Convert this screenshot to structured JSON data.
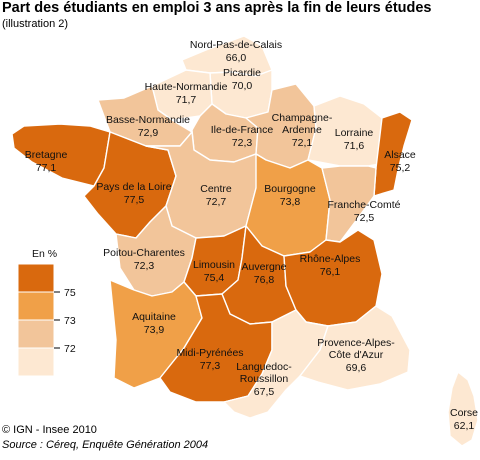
{
  "title": "Part des étudiants en emploi 3 ans après la fin de leurs études",
  "subtitle": "(illustration 2)",
  "legend": {
    "title": "En %",
    "breaks": [
      "75",
      "73",
      "72"
    ],
    "colors": [
      "#d9690e",
      "#f0a048",
      "#f2c59a",
      "#fde8d2"
    ]
  },
  "regions": [
    {
      "id": "nord-pas-de-calais",
      "name": "Nord-Pas-de-Calais",
      "value": "66,0",
      "cls": 3
    },
    {
      "id": "picardie",
      "name": "Picardie",
      "value": "70,0",
      "cls": 3
    },
    {
      "id": "haute-normandie",
      "name": "Haute-Normandie",
      "value": "71,7",
      "cls": 3
    },
    {
      "id": "basse-normandie",
      "name": "Basse-Normandie",
      "value": "72,9",
      "cls": 2
    },
    {
      "id": "ile-de-france",
      "name": "Ile-de-France",
      "value": "72,3",
      "cls": 2
    },
    {
      "id": "champagne-ardenne",
      "name": "Champagne-\nArdenne",
      "value": "72,1",
      "cls": 2
    },
    {
      "id": "lorraine",
      "name": "Lorraine",
      "value": "71,6",
      "cls": 3
    },
    {
      "id": "alsace",
      "name": "Alsace",
      "value": "75,2",
      "cls": 0
    },
    {
      "id": "bretagne",
      "name": "Bretagne",
      "value": "77,1",
      "cls": 0
    },
    {
      "id": "pays-de-la-loire",
      "name": "Pays de la Loire",
      "value": "77,5",
      "cls": 0
    },
    {
      "id": "centre",
      "name": "Centre",
      "value": "72,7",
      "cls": 2
    },
    {
      "id": "bourgogne",
      "name": "Bourgogne",
      "value": "73,8",
      "cls": 1
    },
    {
      "id": "franche-comte",
      "name": "Franche-Comté",
      "value": "72,5",
      "cls": 2
    },
    {
      "id": "poitou-charentes",
      "name": "Poitou-Charentes",
      "value": "72,3",
      "cls": 2
    },
    {
      "id": "limousin",
      "name": "Limousin",
      "value": "75,4",
      "cls": 0
    },
    {
      "id": "auvergne",
      "name": "Auvergne",
      "value": "76,8",
      "cls": 0
    },
    {
      "id": "rhone-alpes",
      "name": "Rhône-Alpes",
      "value": "76,1",
      "cls": 0
    },
    {
      "id": "aquitaine",
      "name": "Aquitaine",
      "value": "73,9",
      "cls": 1
    },
    {
      "id": "midi-pyrenees",
      "name": "Midi-Pyrénées",
      "value": "77,3",
      "cls": 0
    },
    {
      "id": "languedoc-roussillon",
      "name": "Languedoc-\nRoussillon",
      "value": "67,5",
      "cls": 3
    },
    {
      "id": "provence-alpes-cote-d-azur",
      "name": "Provence-Alpes-\nCôte d'Azur",
      "value": "69,6",
      "cls": 3
    },
    {
      "id": "corse",
      "name": "Corse",
      "value": "62,1",
      "cls": 3
    }
  ],
  "credit": "© IGN - Insee 2010",
  "source": "Source : Céreq, Enquête Génération 2004"
}
